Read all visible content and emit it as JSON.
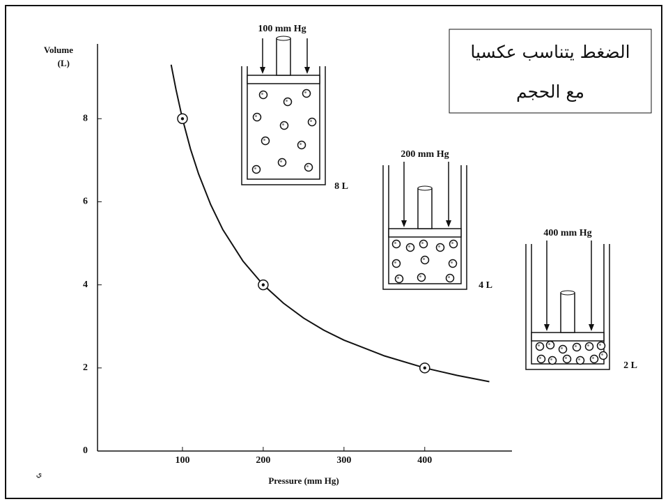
{
  "chart_data": {
    "type": "line",
    "x_label": "Pressure (mm Hg)",
    "y_label": [
      "Volume",
      "(L)"
    ],
    "x": [
      86,
      92,
      100,
      110,
      120,
      135,
      150,
      175,
      200,
      225,
      250,
      275,
      300,
      350,
      400,
      440,
      480
    ],
    "values": [
      9.3,
      8.7,
      8,
      7.27,
      6.67,
      5.93,
      5.33,
      4.57,
      4,
      3.56,
      3.2,
      2.91,
      2.67,
      2.29,
      2,
      1.82,
      1.67
    ],
    "points": {
      "x": [
        100,
        200,
        400
      ],
      "values": [
        8,
        4,
        2
      ]
    },
    "color": "#111111",
    "xlim": [
      0,
      508
    ],
    "ylim": [
      0,
      9.8
    ],
    "xticks": [
      100,
      200,
      300,
      400
    ],
    "yticks": [
      0,
      2,
      4,
      6,
      8
    ],
    "annotations": [
      {
        "pressure": "100 mm Hg",
        "volume": "8 L"
      },
      {
        "pressure": "200 mm Hg",
        "volume": "4 L"
      },
      {
        "pressure": "400 mm Hg",
        "volume": "2 L"
      }
    ],
    "note": [
      "الضغط يتناسب عكسيا",
      "مع الحجم"
    ],
    "footnote": "ي"
  }
}
